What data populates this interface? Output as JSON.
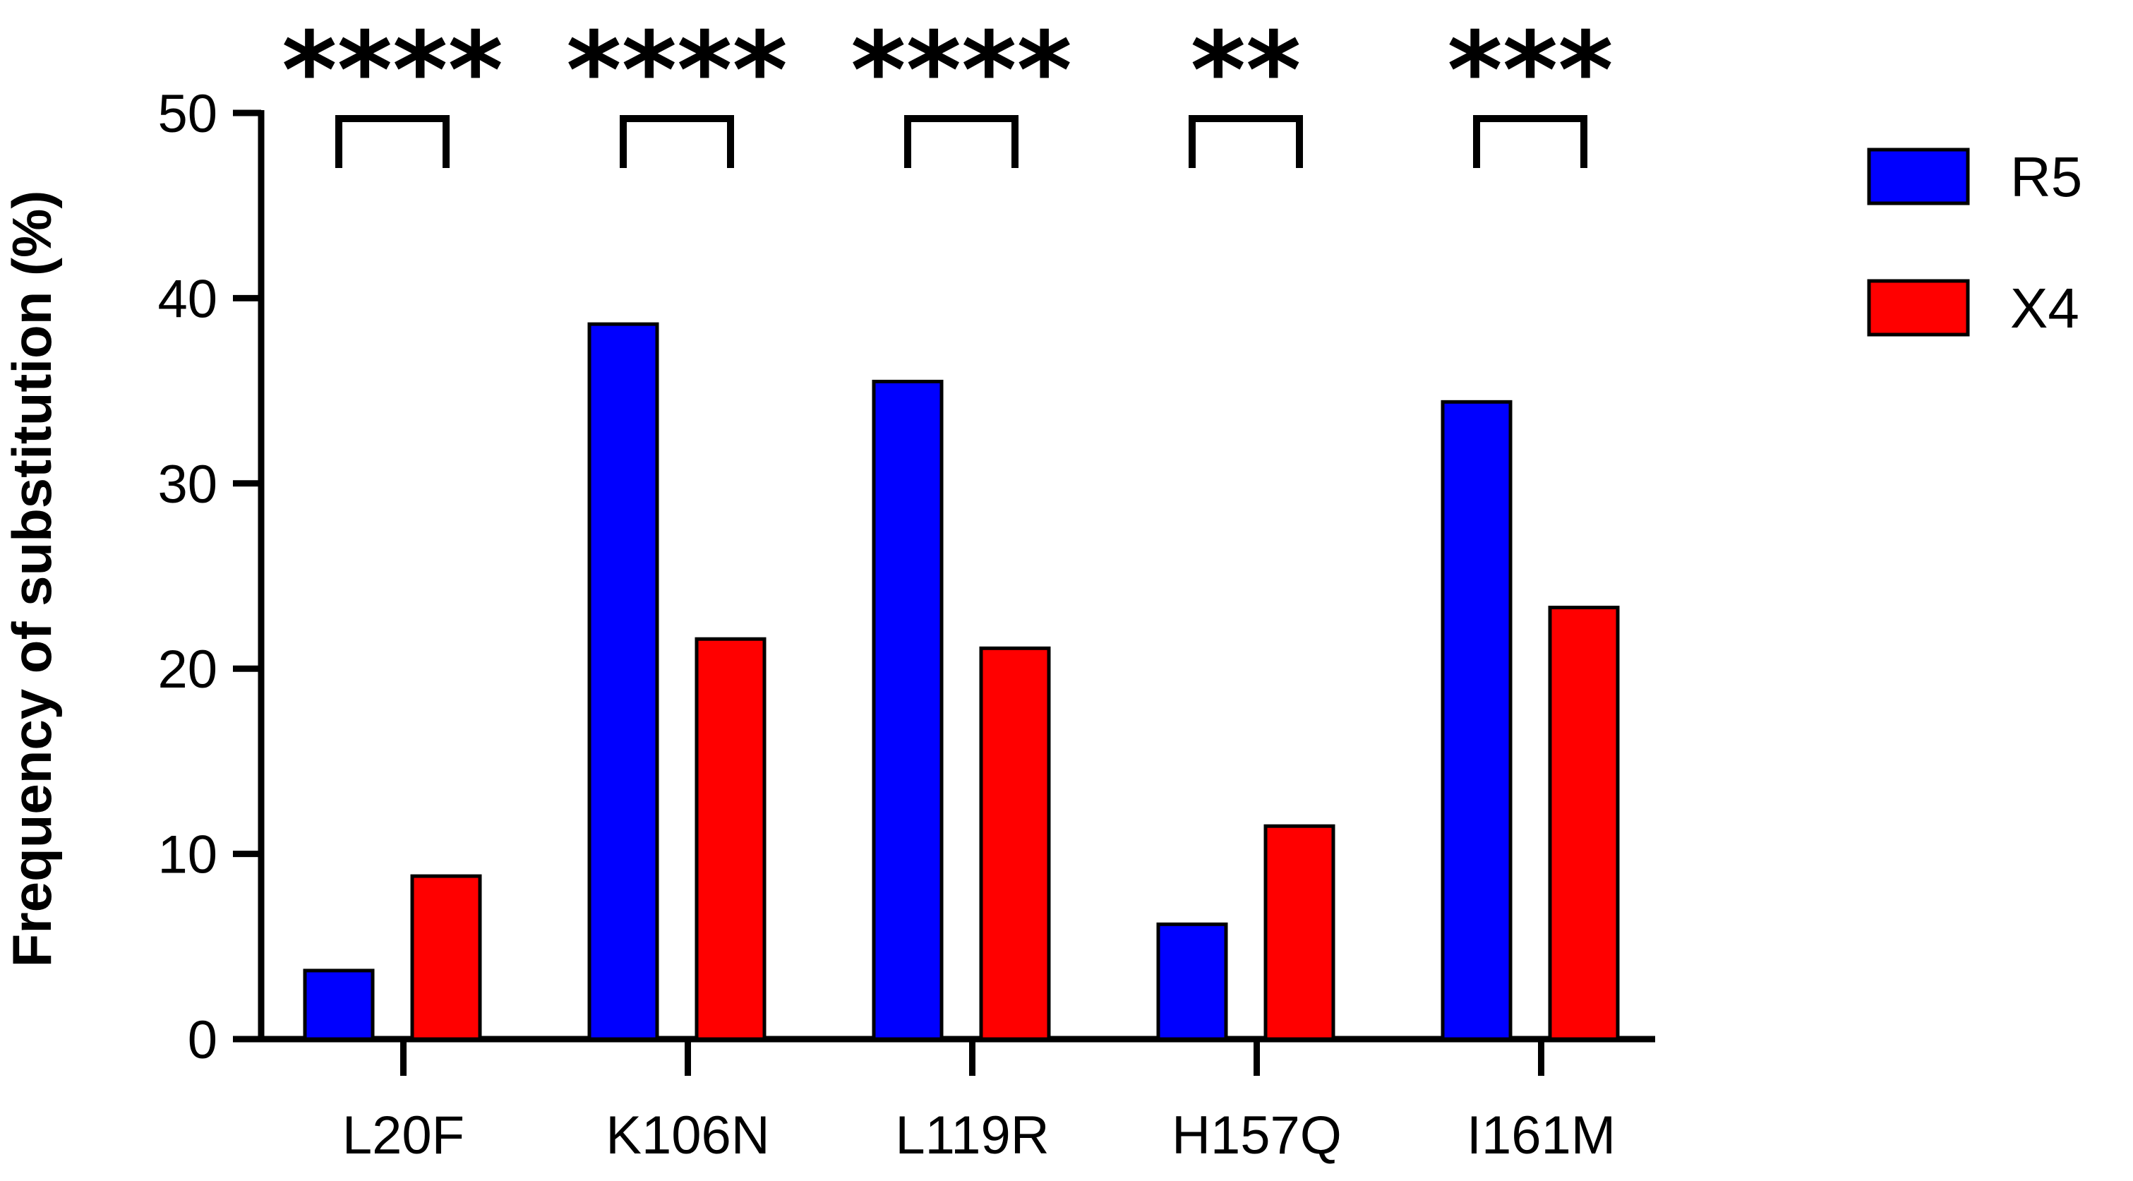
{
  "chart_data": {
    "type": "bar",
    "categories": [
      "L20F",
      "K106N",
      "L119R",
      "H157Q",
      "I161M"
    ],
    "series": [
      {
        "name": "R5",
        "values": [
          3.7,
          38.6,
          35.5,
          6.2,
          34.4
        ],
        "color": "#0000ff"
      },
      {
        "name": "X4",
        "values": [
          8.8,
          21.6,
          21.1,
          11.5,
          23.3
        ],
        "color": "#ff0000"
      }
    ],
    "significance": [
      "****",
      "****",
      "****",
      "**",
      "***"
    ],
    "title": "",
    "xlabel": "",
    "ylabel": "Frequency of substitution (%)",
    "ylim": [
      0,
      50
    ],
    "yticks": [
      0,
      10,
      20,
      30,
      40,
      50
    ],
    "grid": false,
    "legend_position": "top-right"
  }
}
